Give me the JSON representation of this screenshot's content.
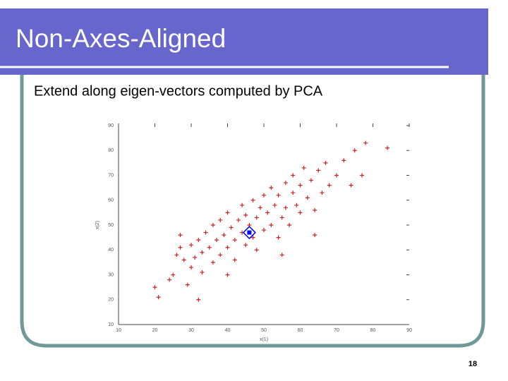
{
  "slide": {
    "title": "Non-Axes-Aligned",
    "subtitle": "Extend along eigen-vectors computed by PCA",
    "page_number": "18"
  },
  "chart_data": {
    "type": "scatter",
    "xlabel": "x(1)",
    "ylabel": "x(2)",
    "xlim": [
      10,
      90
    ],
    "ylim": [
      10,
      90
    ],
    "xticks": [
      10,
      20,
      30,
      40,
      50,
      60,
      70,
      80,
      90
    ],
    "yticks": [
      10,
      20,
      30,
      40,
      50,
      60,
      70,
      80,
      90
    ],
    "points": {
      "color": "#cc2222",
      "x": [
        20,
        21,
        24,
        25,
        26,
        27,
        28,
        29,
        30,
        30,
        31,
        32,
        33,
        33,
        34,
        35,
        36,
        36,
        37,
        38,
        38,
        39,
        40,
        40,
        41,
        42,
        42,
        43,
        44,
        44,
        45,
        45,
        46,
        47,
        47,
        48,
        48,
        49,
        50,
        50,
        51,
        52,
        52,
        53,
        54,
        54,
        55,
        56,
        56,
        57,
        58,
        58,
        59,
        60,
        60,
        61,
        62,
        63,
        64,
        65,
        66,
        67,
        68,
        70,
        72,
        74,
        75,
        77,
        78,
        84,
        32,
        40,
        55,
        64,
        27
      ],
      "y": [
        25,
        21,
        28,
        30,
        38,
        41,
        36,
        26,
        33,
        42,
        37,
        44,
        39,
        31,
        47,
        41,
        35,
        50,
        44,
        38,
        52,
        46,
        41,
        55,
        49,
        44,
        36,
        52,
        47,
        58,
        42,
        54,
        50,
        45,
        60,
        53,
        40,
        57,
        48,
        62,
        55,
        50,
        65,
        58,
        45,
        62,
        53,
        67,
        57,
        50,
        63,
        70,
        58,
        55,
        66,
        73,
        61,
        68,
        56,
        72,
        63,
        75,
        66,
        70,
        76,
        66,
        80,
        70,
        83,
        81,
        20,
        30,
        38,
        46,
        46
      ]
    },
    "centroid": {
      "x": 46,
      "y": 47,
      "color": "#0000ff"
    }
  }
}
